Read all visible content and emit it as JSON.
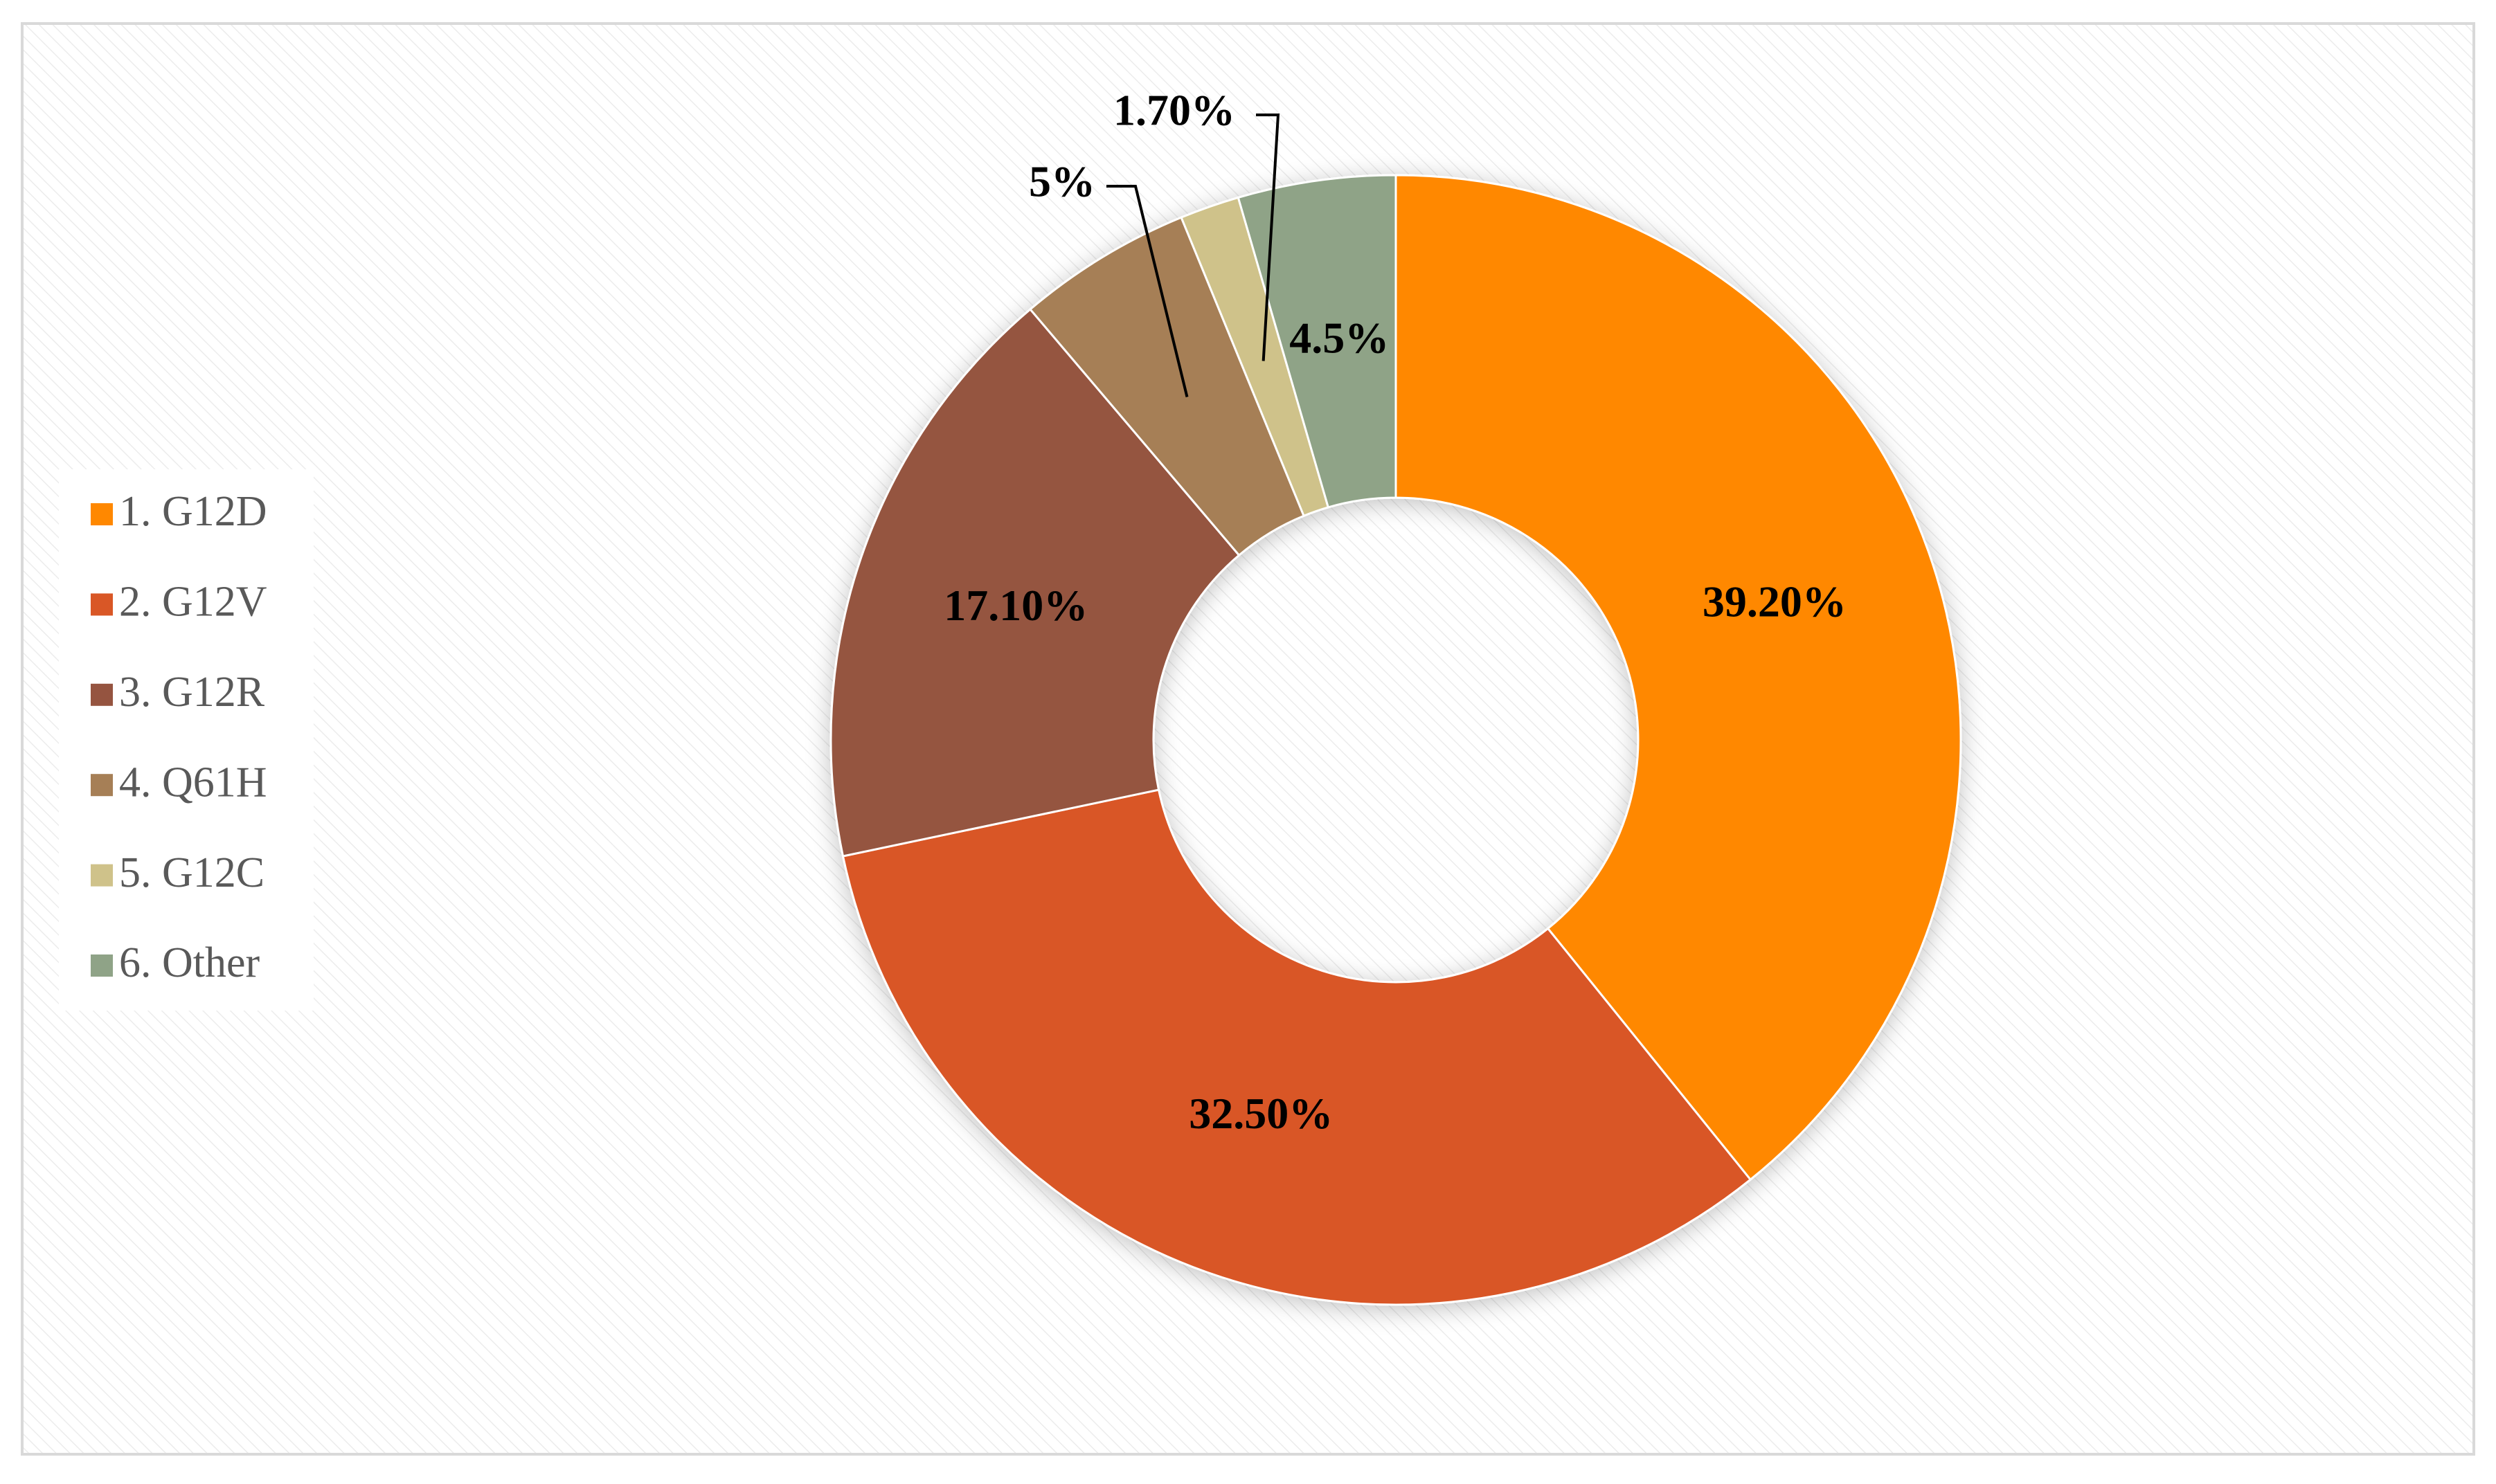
{
  "chart_data": {
    "type": "donut",
    "categories": [
      "1. G12D",
      "2. G12V",
      "3. G12R",
      "4. Q61H",
      "5. G12C",
      "6. Other"
    ],
    "values": [
      39.2,
      32.5,
      17.1,
      5,
      1.7,
      4.5
    ],
    "value_labels": [
      "39.20%",
      "32.50%",
      "17.10%",
      "5%",
      "1.70%",
      "4.5%"
    ],
    "colors": [
      "#FF8800",
      "#D95726",
      "#955440",
      "#A67F56",
      "#CFC28A",
      "#8FA387"
    ],
    "legend": "left"
  }
}
